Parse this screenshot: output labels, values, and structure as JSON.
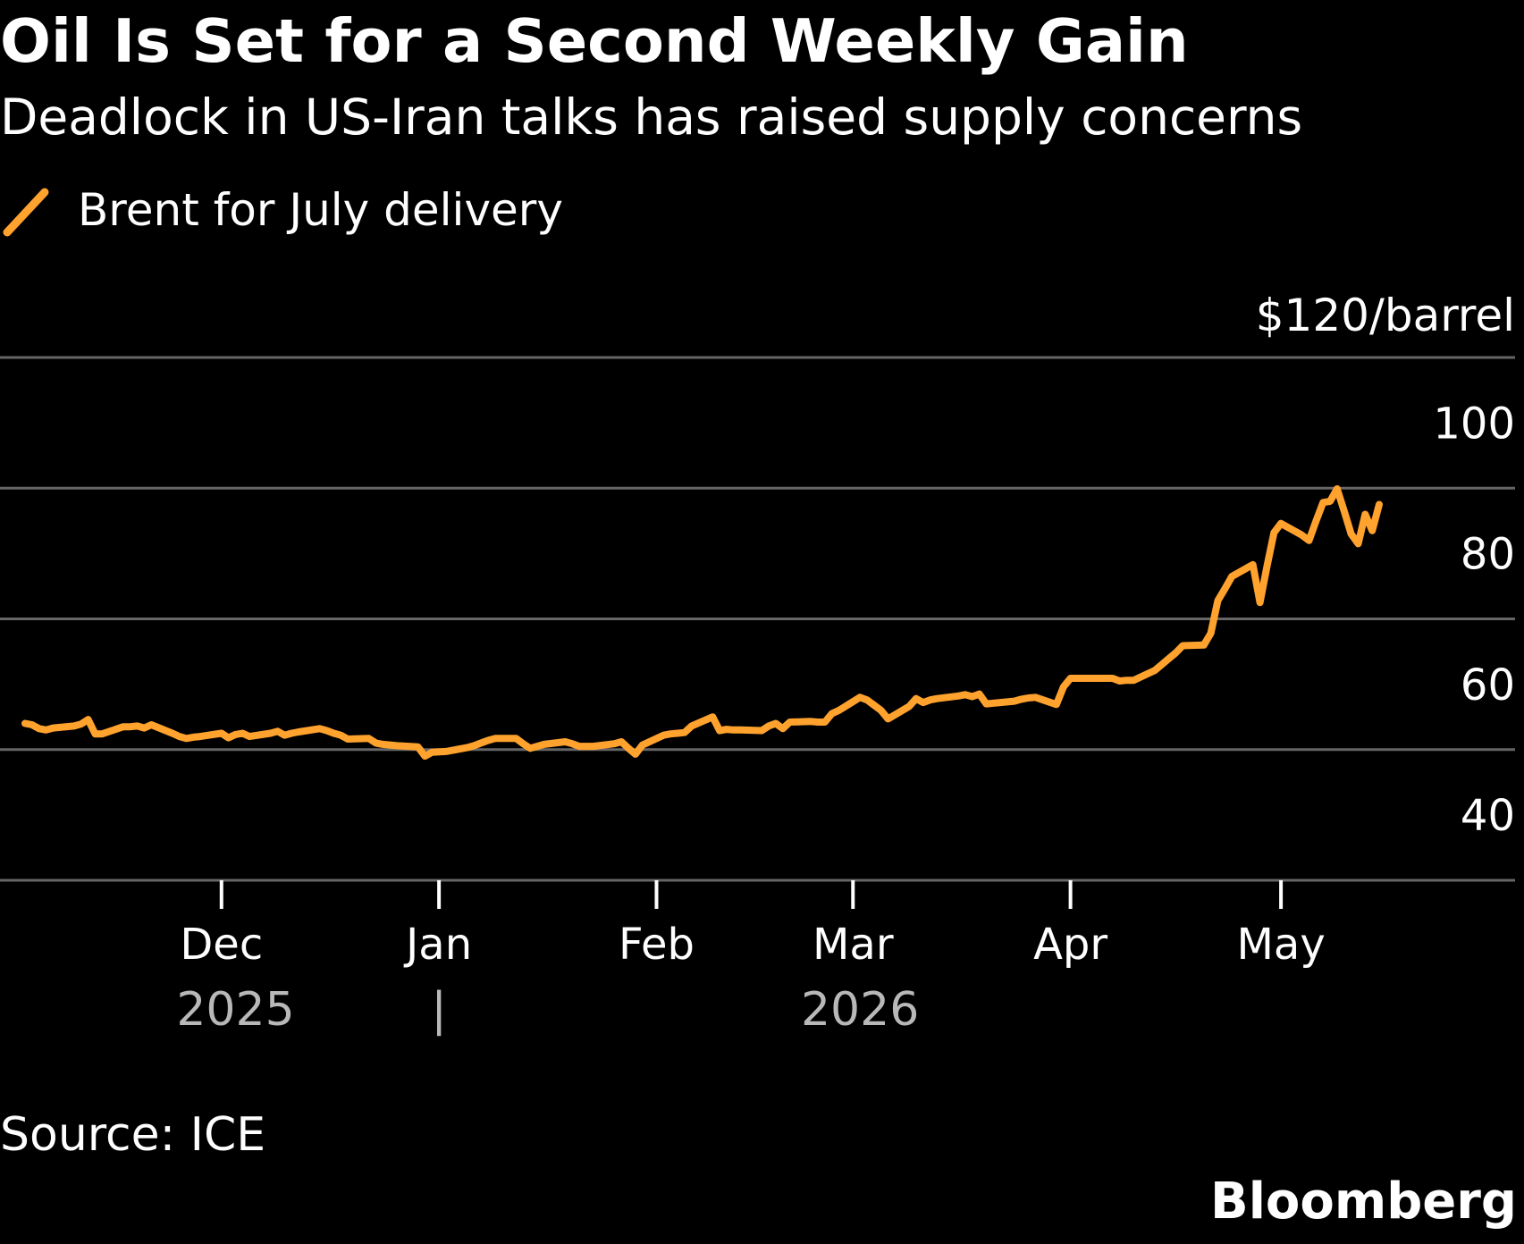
{
  "header": {
    "title": "Oil Is Set for a Second Weekly Gain",
    "subtitle": "Deadlock in US-Iran talks has raised supply concerns"
  },
  "footer": {
    "source": "Source: ICE",
    "brand": "Bloomberg"
  },
  "colors": {
    "background": "#000000",
    "line": "#FFA22E",
    "grid": "#666666",
    "text": "#FFFFFF",
    "muted_text": "#B8B8B8"
  },
  "chart_data": {
    "type": "line",
    "title": "Oil Is Set for a Second Weekly Gain",
    "subtitle": "Deadlock in US-Iran talks has raised supply concerns",
    "y_unit_label": "$120/barrel",
    "ylim": [
      40,
      120
    ],
    "y_ticks": [
      40,
      60,
      80,
      100,
      120
    ],
    "y_tick_labels": [
      "40",
      "60",
      "80",
      "100",
      "$120/barrel"
    ],
    "grid": true,
    "legend_position": "top-left",
    "x_axis": {
      "start": "2025-11-03",
      "end": "2026-05-15",
      "ticks": [
        {
          "date": "2025-12-01",
          "label": "Dec"
        },
        {
          "date": "2026-01-01",
          "label": "Jan"
        },
        {
          "date": "2026-02-01",
          "label": "Feb"
        },
        {
          "date": "2026-03-01",
          "label": "Mar"
        },
        {
          "date": "2026-04-01",
          "label": "Apr"
        },
        {
          "date": "2026-05-01",
          "label": "May"
        }
      ],
      "years": [
        {
          "label": "2025",
          "anchor": "2025-12-03"
        },
        {
          "label": "|",
          "anchor": "2026-01-01"
        },
        {
          "label": "2026",
          "anchor": "2026-03-02"
        }
      ]
    },
    "series": [
      {
        "name": "Brent for July delivery",
        "color": "#FFA22E",
        "points": [
          [
            "2025-11-03",
            64.0
          ],
          [
            "2025-11-04",
            63.8
          ],
          [
            "2025-11-05",
            63.2
          ],
          [
            "2025-11-06",
            63.0
          ],
          [
            "2025-11-07",
            63.3
          ],
          [
            "2025-11-10",
            63.6
          ],
          [
            "2025-11-11",
            63.9
          ],
          [
            "2025-11-12",
            64.6
          ],
          [
            "2025-11-13",
            62.4
          ],
          [
            "2025-11-14",
            62.4
          ],
          [
            "2025-11-17",
            63.5
          ],
          [
            "2025-11-18",
            63.5
          ],
          [
            "2025-11-19",
            63.6
          ],
          [
            "2025-11-20",
            63.3
          ],
          [
            "2025-11-21",
            63.8
          ],
          [
            "2025-11-24",
            62.5
          ],
          [
            "2025-11-25",
            62.0
          ],
          [
            "2025-11-26",
            61.7
          ],
          [
            "2025-11-27",
            61.9
          ],
          [
            "2025-11-28",
            62.0
          ],
          [
            "2025-12-01",
            62.5
          ],
          [
            "2025-12-02",
            61.8
          ],
          [
            "2025-12-03",
            62.3
          ],
          [
            "2025-12-04",
            62.5
          ],
          [
            "2025-12-05",
            62.0
          ],
          [
            "2025-12-08",
            62.5
          ],
          [
            "2025-12-09",
            62.8
          ],
          [
            "2025-12-10",
            62.2
          ],
          [
            "2025-12-11",
            62.5
          ],
          [
            "2025-12-12",
            62.7
          ],
          [
            "2025-12-15",
            63.2
          ],
          [
            "2025-12-16",
            62.9
          ],
          [
            "2025-12-17",
            62.5
          ],
          [
            "2025-12-18",
            62.2
          ],
          [
            "2025-12-19",
            61.6
          ],
          [
            "2025-12-22",
            61.7
          ],
          [
            "2025-12-23",
            61.0
          ],
          [
            "2025-12-24",
            60.8
          ],
          [
            "2025-12-26",
            60.6
          ],
          [
            "2025-12-29",
            60.4
          ],
          [
            "2025-12-30",
            59.0
          ],
          [
            "2025-12-31",
            59.6
          ],
          [
            "2026-01-02",
            59.7
          ],
          [
            "2026-01-05",
            60.3
          ],
          [
            "2026-01-06",
            60.6
          ],
          [
            "2026-01-07",
            61.0
          ],
          [
            "2026-01-08",
            61.4
          ],
          [
            "2026-01-09",
            61.7
          ],
          [
            "2026-01-12",
            61.7
          ],
          [
            "2026-01-13",
            60.9
          ],
          [
            "2026-01-14",
            60.2
          ],
          [
            "2026-01-15",
            60.5
          ],
          [
            "2026-01-16",
            60.8
          ],
          [
            "2026-01-19",
            61.2
          ],
          [
            "2026-01-20",
            60.9
          ],
          [
            "2026-01-21",
            60.5
          ],
          [
            "2026-01-22",
            60.5
          ],
          [
            "2026-01-23",
            60.5
          ],
          [
            "2026-01-26",
            60.9
          ],
          [
            "2026-01-27",
            61.2
          ],
          [
            "2026-01-28",
            60.2
          ],
          [
            "2026-01-29",
            59.3
          ],
          [
            "2026-01-30",
            60.7
          ],
          [
            "2026-02-02",
            62.2
          ],
          [
            "2026-02-03",
            62.4
          ],
          [
            "2026-02-04",
            62.5
          ],
          [
            "2026-02-05",
            62.6
          ],
          [
            "2026-02-06",
            63.6
          ],
          [
            "2026-02-09",
            65.0
          ],
          [
            "2026-02-10",
            62.9
          ],
          [
            "2026-02-11",
            63.1
          ],
          [
            "2026-02-12",
            63.0
          ],
          [
            "2026-02-13",
            63.0
          ],
          [
            "2026-02-16",
            62.9
          ],
          [
            "2026-02-17",
            63.6
          ],
          [
            "2026-02-18",
            64.0
          ],
          [
            "2026-02-19",
            63.2
          ],
          [
            "2026-02-20",
            64.2
          ],
          [
            "2026-02-23",
            64.3
          ],
          [
            "2026-02-24",
            64.2
          ],
          [
            "2026-02-25",
            64.2
          ],
          [
            "2026-02-26",
            65.5
          ],
          [
            "2026-02-27",
            66.0
          ],
          [
            "2026-03-02",
            68.0
          ],
          [
            "2026-03-03",
            67.6
          ],
          [
            "2026-03-04",
            66.8
          ],
          [
            "2026-03-05",
            66.0
          ],
          [
            "2026-03-06",
            64.7
          ],
          [
            "2026-03-09",
            66.6
          ],
          [
            "2026-03-10",
            67.8
          ],
          [
            "2026-03-11",
            67.2
          ],
          [
            "2026-03-12",
            67.6
          ],
          [
            "2026-03-13",
            67.8
          ],
          [
            "2026-03-16",
            68.2
          ],
          [
            "2026-03-17",
            68.4
          ],
          [
            "2026-03-18",
            68.1
          ],
          [
            "2026-03-19",
            68.5
          ],
          [
            "2026-03-20",
            67.0
          ],
          [
            "2026-03-23",
            67.3
          ],
          [
            "2026-03-24",
            67.4
          ],
          [
            "2026-03-25",
            67.7
          ],
          [
            "2026-03-26",
            67.9
          ],
          [
            "2026-03-27",
            68.0
          ],
          [
            "2026-03-30",
            66.9
          ],
          [
            "2026-03-31",
            69.6
          ],
          [
            "2026-04-01",
            70.9
          ],
          [
            "2026-04-02",
            70.9
          ],
          [
            "2026-04-03",
            70.9
          ],
          [
            "2026-04-06",
            70.9
          ],
          [
            "2026-04-07",
            70.9
          ],
          [
            "2026-04-08",
            70.5
          ],
          [
            "2026-04-09",
            70.6
          ],
          [
            "2026-04-10",
            70.6
          ],
          [
            "2026-04-13",
            72.1
          ],
          [
            "2026-04-14",
            73.0
          ],
          [
            "2026-04-15",
            73.9
          ],
          [
            "2026-04-16",
            74.8
          ],
          [
            "2026-04-17",
            75.9
          ],
          [
            "2026-04-20",
            76.0
          ],
          [
            "2026-04-21",
            77.8
          ],
          [
            "2026-04-22",
            82.8
          ],
          [
            "2026-04-23",
            84.6
          ],
          [
            "2026-04-24",
            86.5
          ],
          [
            "2026-04-27",
            88.3
          ],
          [
            "2026-04-28",
            82.5
          ],
          [
            "2026-04-29",
            88.0
          ],
          [
            "2026-04-30",
            93.2
          ],
          [
            "2026-05-01",
            94.6
          ],
          [
            "2026-05-04",
            92.8
          ],
          [
            "2026-05-05",
            92.0
          ],
          [
            "2026-05-06",
            95.0
          ],
          [
            "2026-05-07",
            97.8
          ],
          [
            "2026-05-08",
            98.0
          ],
          [
            "2026-05-09",
            99.9
          ],
          [
            "2026-05-10",
            96.5
          ],
          [
            "2026-05-11",
            93.0
          ],
          [
            "2026-05-12",
            91.5
          ],
          [
            "2026-05-13",
            96.0
          ],
          [
            "2026-05-14",
            93.5
          ],
          [
            "2026-05-15",
            97.5
          ]
        ]
      }
    ]
  }
}
